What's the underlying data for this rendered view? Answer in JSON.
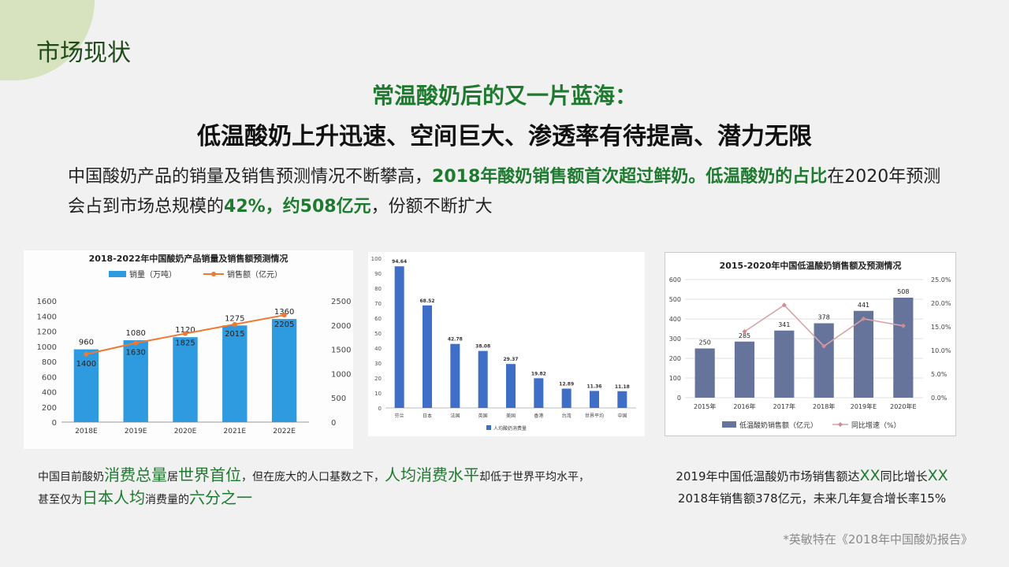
{
  "section_title": "市场现状",
  "headline": {
    "line1": "常温酸奶后的又一片蓝海：",
    "line2": "低温酸奶上升迅速、空间巨大、渗透率有待提高、潜力无限"
  },
  "intro": {
    "p1": "中国酸奶产品的销量及销售预测情况不断攀高，",
    "p2": "2018年酸奶销售额首次超过鲜奶。低温酸奶的占比",
    "p3": "在2020年预测会占到市场总规模的",
    "p4": "42%，约508亿元",
    "p5": "，份额不断扩大"
  },
  "chart_data": [
    {
      "type": "bar",
      "title": "2018-2022年中国酸奶产品销量及销售额预测情况",
      "categories": [
        "2018E",
        "2019E",
        "2020E",
        "2021E",
        "2022E"
      ],
      "series": [
        {
          "name": "销量（万吨）",
          "type": "bar",
          "axis": "left",
          "values": [
            960,
            1080,
            1120,
            1275,
            1360
          ],
          "color": "#2e9be0"
        },
        {
          "name": "销售额（亿元）",
          "type": "line",
          "axis": "right",
          "values": [
            1400,
            1630,
            1825,
            2015,
            2205
          ],
          "color": "#f07830"
        }
      ],
      "ylim_left": [
        0,
        1600
      ],
      "yticks_left": [
        0,
        200,
        400,
        600,
        800,
        1000,
        1200,
        1400,
        1600
      ],
      "ylim_right": [
        0,
        2500
      ],
      "yticks_right": [
        0,
        500,
        1000,
        1500,
        2000,
        2500
      ],
      "legend": "top",
      "grid": false
    },
    {
      "type": "bar",
      "title": "",
      "categories": [
        "芬兰",
        "日本",
        "法国",
        "英国",
        "美国",
        "香港",
        "台湾",
        "世界平均",
        "中国"
      ],
      "series": [
        {
          "name": "人均酸奶消费量",
          "values": [
            94.64,
            68.52,
            42.78,
            38.08,
            29.37,
            19.82,
            12.89,
            11.36,
            11.18
          ],
          "color": "#3f6ec6"
        }
      ],
      "ylim": [
        0,
        100
      ],
      "yticks": [
        0,
        10,
        20,
        30,
        40,
        50,
        60,
        70,
        80,
        90,
        100
      ],
      "legend": "bottom",
      "grid": false
    },
    {
      "type": "bar",
      "title": "2015-2020年中国低温酸奶销售额及预测情况",
      "categories": [
        "2015年",
        "2016年",
        "2017年",
        "2018年",
        "2019年E",
        "2020年E"
      ],
      "series": [
        {
          "name": "低温酸奶销售额（亿元）",
          "type": "bar",
          "axis": "left",
          "values": [
            250,
            285,
            341,
            378,
            441,
            508
          ],
          "color": "#66739a"
        },
        {
          "name": "同比增速（%）",
          "type": "line",
          "axis": "right",
          "values": [
            null,
            14.0,
            19.6,
            10.9,
            16.7,
            15.2
          ],
          "color": "#d6a4a6"
        }
      ],
      "ylim_left": [
        0,
        600
      ],
      "yticks_left": [
        0,
        100,
        200,
        300,
        400,
        500,
        600
      ],
      "ylim_right": [
        0,
        25
      ],
      "yticks_right": [
        "0.0%",
        "5.0%",
        "10.0%",
        "15.0%",
        "20.0%",
        "25.0%"
      ],
      "legend": "bottom",
      "grid": true
    }
  ],
  "note_left": {
    "t1": "中国目前酸奶",
    "h1": "消费总量",
    "t2": "居",
    "h2": "世界首位",
    "t3": "，但在庞大的人口基数之下，",
    "h3": "人均消费水平",
    "t4": "却低于世界平均水平，",
    "t5": "甚至仅为",
    "h4": "日本人均",
    "t6": "消费量的",
    "h5": "六分之一"
  },
  "note_right": {
    "a": "2019年中国低温酸奶市场销售额达",
    "x1": "XX",
    "b": "同比增长",
    "x2": "XX",
    "line2": "2018年销售额378亿元，未来几年复合增长率15%"
  },
  "source": "*英敏特在《2018年中国酸奶报告》"
}
